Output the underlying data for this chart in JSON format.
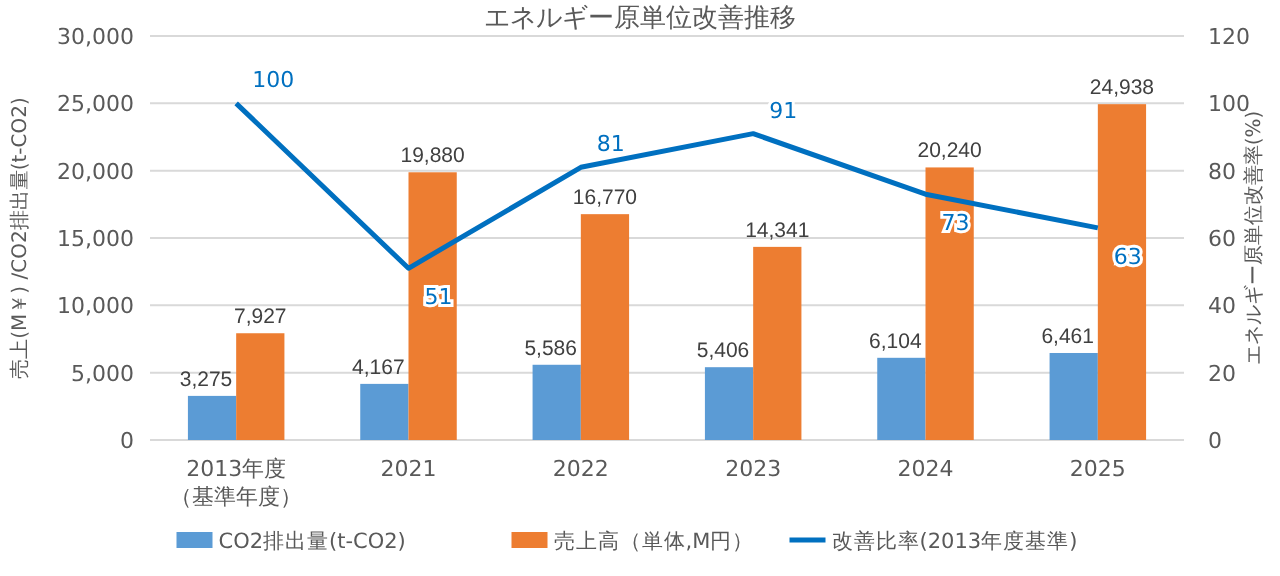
{
  "chart_data": {
    "type": "bar",
    "title": "エネルギー原単位改善推移",
    "categories": [
      "2013年度（基準年度）",
      "2021",
      "2022",
      "2023",
      "2024",
      "2025"
    ],
    "series": [
      {
        "name": "CO2排出量(t-CO2)",
        "color": "#5b9bd5",
        "values": [
          3275,
          4167,
          5586,
          5406,
          6104,
          6461
        ],
        "value_labels": [
          "3,275",
          "4,167",
          "5,586",
          "5,406",
          "6,104",
          "6,461"
        ]
      },
      {
        "name": "売上高（単体,M円）",
        "color": "#ed7d31",
        "values": [
          7927,
          19880,
          16770,
          14341,
          20240,
          24938
        ],
        "value_labels": [
          "7,927",
          "19,880",
          "16,770",
          "14,341",
          "20,240",
          "24,938"
        ]
      },
      {
        "name": "改善比率(2013年度基準)",
        "type": "line",
        "axis": "y2",
        "color": "#0070c0",
        "values": [
          100,
          51,
          81,
          91,
          73,
          63
        ],
        "value_labels": [
          "100",
          "51",
          "81",
          "91",
          "73",
          "63"
        ]
      }
    ],
    "ylabel": "売上(M￥) /CO2排出量(t-CO2)",
    "y2label": "エネルギー原単位改善率(%)",
    "ylim": [
      0,
      30000
    ],
    "yticks": [
      0,
      {
        "value": 5000,
        "label": "5,000"
      },
      {
        "value": 10000,
        "label": "10,000"
      },
      {
        "value": 15000,
        "label": "15,000"
      },
      {
        "value": 20000,
        "label": "20,000"
      },
      {
        "value": 25000,
        "label": "25,000"
      },
      {
        "value": 30000,
        "label": "30,000"
      }
    ],
    "y2lim": [
      0,
      120
    ],
    "y2ticks": [
      0,
      20,
      40,
      60,
      80,
      100,
      120
    ],
    "grid": "y",
    "legend": "bottom",
    "marker": "none"
  }
}
